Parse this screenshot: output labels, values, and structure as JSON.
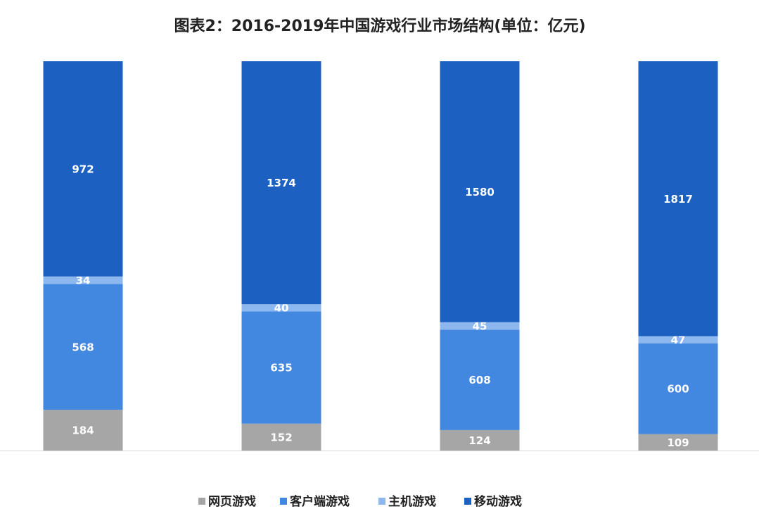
{
  "chart_data": {
    "type": "bar",
    "stacking": "percent",
    "title": "图表2：2016-2019年中国游戏行业市场结构(单位：亿元)",
    "categories": [
      null,
      null,
      null,
      null
    ],
    "series": [
      {
        "name": "网页游戏",
        "color": "#a6a6a6",
        "values": [
          184,
          152,
          124,
          109
        ]
      },
      {
        "name": "客户端游戏",
        "color": "#4287e0",
        "values": [
          568,
          635,
          608,
          600
        ]
      },
      {
        "name": "主机游戏",
        "color": "#8db8ef",
        "values": [
          34,
          40,
          45,
          47
        ]
      },
      {
        "name": "移动游戏",
        "color": "#1c60c2",
        "values": [
          972,
          1374,
          1580,
          1817
        ]
      }
    ],
    "legend": "bottom"
  }
}
